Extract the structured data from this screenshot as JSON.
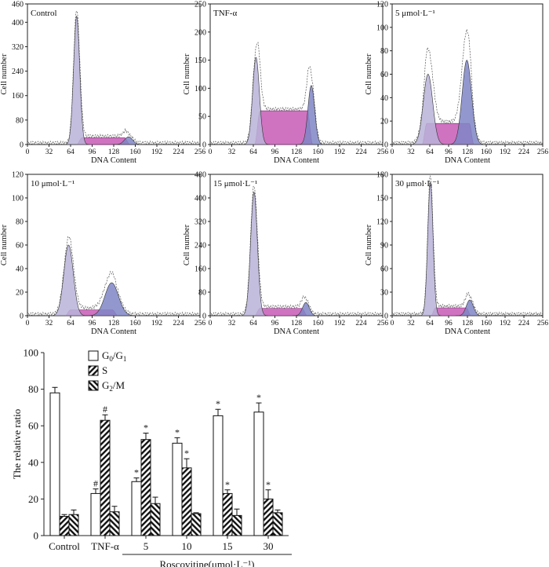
{
  "figure": {
    "alt": "Flow cytometry cell cycle histograms and bar chart of relative ratio"
  },
  "colors": {
    "g0g1_peak": "#b8b3d8",
    "s_phase": "#c75ab6",
    "g2m_peak": "#7f86c6",
    "g1_alt": "#a7a7d4",
    "outline": "#222222"
  },
  "chart_data": [
    {
      "type": "histogram",
      "id": "panel-control",
      "panel_label": "Control",
      "xlabel": "DNA Content",
      "ylabel": "Cell number",
      "xlim": [
        0,
        256
      ],
      "xticks": [
        0,
        32,
        64,
        96,
        128,
        160,
        192,
        224,
        256
      ],
      "ylim": [
        0,
        460
      ],
      "yticks": [
        0,
        80,
        160,
        240,
        320,
        400,
        460
      ],
      "g1_peak": {
        "center": 73,
        "height": 420,
        "width": 4.5
      },
      "g2_peak": {
        "center": 150,
        "height": 25,
        "width": 6
      },
      "s_band": {
        "start": 77,
        "end": 148,
        "height": 22
      }
    },
    {
      "type": "histogram",
      "id": "panel-tnf",
      "panel_label": "TNF-α",
      "xlabel": "DNA Content",
      "ylabel": "Cell number",
      "xlim": [
        0,
        256
      ],
      "xticks": [
        0,
        32,
        64,
        96,
        128,
        160,
        192,
        224,
        256
      ],
      "ylim": [
        0,
        250
      ],
      "yticks": [
        0,
        50,
        100,
        150,
        200,
        250
      ],
      "g1_peak": {
        "center": 68,
        "height": 155,
        "width": 5
      },
      "g2_peak": {
        "center": 150,
        "height": 105,
        "width": 5
      },
      "s_band": {
        "start": 70,
        "end": 148,
        "height": 60
      }
    },
    {
      "type": "histogram",
      "id": "panel-5",
      "panel_label": "5 μmol·L⁻¹",
      "xlabel": "DNA Content",
      "ylabel": "Cell number",
      "xlim": [
        0,
        256
      ],
      "xticks": [
        0,
        32,
        64,
        96,
        128,
        160,
        192,
        224,
        256
      ],
      "ylim": [
        0,
        120
      ],
      "yticks": [
        0,
        20,
        40,
        60,
        80,
        100,
        120
      ],
      "g1_peak": {
        "center": 61,
        "height": 60,
        "width": 8
      },
      "g2_peak": {
        "center": 127,
        "height": 72,
        "width": 8
      },
      "s_band": {
        "start": 55,
        "end": 135,
        "height": 18
      }
    },
    {
      "type": "histogram",
      "id": "panel-10",
      "panel_label": "10 μmol·L⁻¹",
      "xlabel": "DNA Content",
      "ylabel": "Cell number",
      "xlim": [
        0,
        256
      ],
      "xticks": [
        0,
        32,
        64,
        96,
        128,
        160,
        192,
        224,
        256
      ],
      "ylim": [
        0,
        120
      ],
      "yticks": [
        0,
        20,
        40,
        60,
        80,
        100,
        120
      ],
      "g1_peak": {
        "center": 61,
        "height": 60,
        "width": 7
      },
      "g2_peak": {
        "center": 125,
        "height": 28,
        "width": 10
      },
      "s_band": {
        "start": 60,
        "end": 130,
        "height": 5
      }
    },
    {
      "type": "histogram",
      "id": "panel-15",
      "panel_label": "15 μmol·L⁻¹",
      "xlabel": "DNA Content",
      "ylabel": "Cell number",
      "xlim": [
        0,
        256
      ],
      "xticks": [
        0,
        32,
        64,
        96,
        128,
        160,
        192,
        224,
        256
      ],
      "ylim": [
        0,
        480
      ],
      "yticks": [
        0,
        80,
        160,
        240,
        320,
        400,
        480
      ],
      "g1_peak": {
        "center": 65,
        "height": 420,
        "width": 5
      },
      "g2_peak": {
        "center": 142,
        "height": 45,
        "width": 5
      },
      "s_band": {
        "start": 70,
        "end": 140,
        "height": 25
      }
    },
    {
      "type": "histogram",
      "id": "panel-30",
      "panel_label": "30 μmol·L⁻¹",
      "xlabel": "DNA Content",
      "ylabel": "Cell number",
      "xlim": [
        0,
        256
      ],
      "xticks": [
        0,
        32,
        64,
        96,
        128,
        160,
        192,
        224,
        256
      ],
      "ylim": [
        0,
        180
      ],
      "yticks": [
        0,
        30,
        60,
        90,
        120,
        150,
        180
      ],
      "g1_peak": {
        "center": 65,
        "height": 170,
        "width": 4.5
      },
      "g2_peak": {
        "center": 132,
        "height": 20,
        "width": 6
      },
      "s_band": {
        "start": 70,
        "end": 130,
        "height": 10
      }
    },
    {
      "type": "bar",
      "id": "relative-ratio",
      "ylabel": "The relative ratio",
      "ylim": [
        0,
        100
      ],
      "yticks": [
        0,
        20,
        40,
        60,
        80,
        100
      ],
      "categories": [
        "Control",
        "TNF-α",
        "5",
        "10",
        "15",
        "30"
      ],
      "group_label": "Roscovitine(μmol·L⁻¹)",
      "series": [
        {
          "name": "G0/G1",
          "legend_main": "G",
          "legend_sub1": "0",
          "legend_mid": "/G",
          "legend_sub2": "1",
          "pattern": "open",
          "values": [
            78,
            23,
            29.5,
            50.5,
            65.5,
            67.5
          ],
          "errors": [
            3,
            2.5,
            2,
            3,
            3.5,
            5
          ],
          "marks": [
            "",
            "#",
            "*",
            "*",
            "*",
            "*"
          ]
        },
        {
          "name": "S",
          "legend_main": "S",
          "legend_sub1": "",
          "legend_mid": "",
          "legend_sub2": "",
          "pattern": "back",
          "values": [
            10.5,
            63,
            52.5,
            37,
            23,
            20
          ],
          "errors": [
            1,
            3,
            3.5,
            5,
            2,
            5
          ],
          "marks": [
            "",
            "#",
            "*",
            "*",
            "*",
            "*"
          ]
        },
        {
          "name": "G2/M",
          "legend_main": "G",
          "legend_sub1": "2",
          "legend_mid": "/M",
          "legend_sub2": "",
          "pattern": "fwd",
          "values": [
            11.5,
            13,
            17.5,
            12,
            11,
            12.5
          ],
          "errors": [
            2.5,
            3,
            3.5,
            0.5,
            3.5,
            1.5
          ],
          "marks": [
            "",
            "",
            "",
            "",
            "",
            ""
          ]
        }
      ]
    }
  ]
}
